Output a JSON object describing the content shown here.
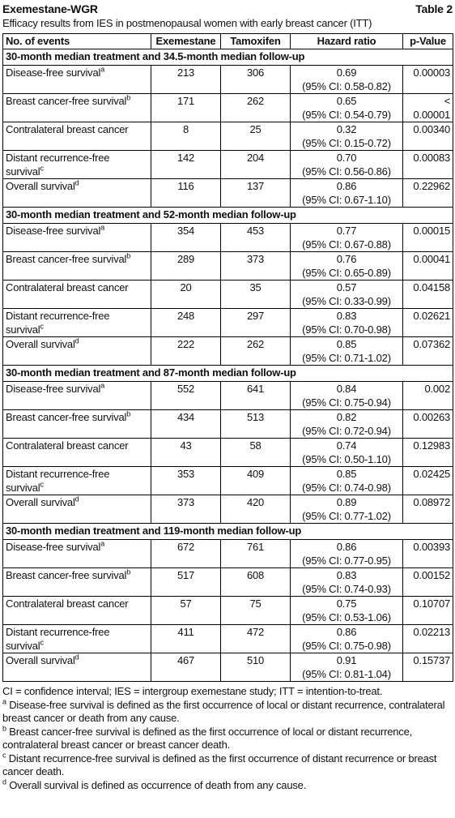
{
  "header": {
    "title": "Exemestane-WGR",
    "table_label": "Table 2",
    "subtitle": "Efficacy results from IES in postmenopausal women with early breast cancer (ITT)"
  },
  "table": {
    "columns": [
      "No. of events",
      "Exemestane",
      "Tamoxifen",
      "Hazard ratio",
      "p-Value"
    ],
    "sections": [
      {
        "heading": "30-month median treatment and 34.5-month median follow-up",
        "rows": [
          {
            "label": "Disease-free survival",
            "sup": "a",
            "exemestane": "213",
            "tamoxifen": "306",
            "hazard_ratio": "0.69",
            "ci": "(95% CI: 0.58-0.82)",
            "p_value": "0.00003"
          },
          {
            "label": "Breast cancer-free survival",
            "sup": "b",
            "exemestane": "171",
            "tamoxifen": "262",
            "hazard_ratio": "0.65",
            "ci": "(95% CI: 0.54-0.79)",
            "p_value": "< 0.00001"
          },
          {
            "label": "Contralateral breast cancer",
            "exemestane": "8",
            "tamoxifen": "25",
            "hazard_ratio": "0.32",
            "ci": "(95% CI: 0.15-0.72)",
            "p_value": "0.00340"
          },
          {
            "label": "Distant recurrence-free survival",
            "sup": "c",
            "exemestane": "142",
            "tamoxifen": "204",
            "hazard_ratio": "0.70",
            "ci": "(95% CI: 0.56-0.86)",
            "p_value": "0.00083"
          },
          {
            "label": "Overall survival",
            "sup": "d",
            "exemestane": "116",
            "tamoxifen": "137",
            "hazard_ratio": "0.86",
            "ci": "(95% CI: 0.67-1.10)",
            "p_value": "0.22962"
          }
        ]
      },
      {
        "heading": "30-month median treatment and 52-month median follow-up",
        "rows": [
          {
            "label": "Disease-free survival",
            "sup": "a",
            "exemestane": "354",
            "tamoxifen": "453",
            "hazard_ratio": "0.77",
            "ci": "(95% CI: 0.67-0.88)",
            "p_value": "0.00015"
          },
          {
            "label": "Breast cancer-free survival",
            "sup": "b",
            "exemestane": "289",
            "tamoxifen": "373",
            "hazard_ratio": "0.76",
            "ci": "(95% CI: 0.65-0.89)",
            "p_value": "0.00041"
          },
          {
            "label": "Contralateral breast cancer",
            "exemestane": "20",
            "tamoxifen": "35",
            "hazard_ratio": "0.57",
            "ci": "(95% CI: 0.33-0.99)",
            "p_value": "0.04158"
          },
          {
            "label": "Distant recurrence-free survival",
            "sup": "c",
            "exemestane": "248",
            "tamoxifen": "297",
            "hazard_ratio": "0.83",
            "ci": "(95% CI: 0.70-0.98)",
            "p_value": "0.02621"
          },
          {
            "label": "Overall survival",
            "sup": "d",
            "exemestane": "222",
            "tamoxifen": "262",
            "hazard_ratio": "0.85",
            "ci": "(95% CI: 0.71-1.02)",
            "p_value": "0.07362"
          }
        ]
      },
      {
        "heading": "30-month median treatment and 87-month median follow-up",
        "rows": [
          {
            "label": "Disease-free survival",
            "sup": "a",
            "exemestane": "552",
            "tamoxifen": "641",
            "hazard_ratio": "0.84",
            "ci": "(95% CI: 0.75-0.94)",
            "p_value": "0.002"
          },
          {
            "label": "Breast cancer-free survival",
            "sup": "b",
            "exemestane": "434",
            "tamoxifen": "513",
            "hazard_ratio": "0.82",
            "ci": "(95% CI: 0.72-0.94)",
            "p_value": "0.00263"
          },
          {
            "label": "Contralateral breast cancer",
            "exemestane": "43",
            "tamoxifen": "58",
            "hazard_ratio": "0.74",
            "ci": "(95% CI: 0.50-1.10)",
            "p_value": "0.12983"
          },
          {
            "label": "Distant recurrence-free survival",
            "sup": "c",
            "exemestane": "353",
            "tamoxifen": "409",
            "hazard_ratio": "0.85",
            "ci": "(95% CI: 0.74-0.98)",
            "p_value": "0.02425"
          },
          {
            "label": "Overall survival",
            "sup": "d",
            "exemestane": "373",
            "tamoxifen": "420",
            "hazard_ratio": "0.89",
            "ci": "(95% CI: 0.77-1.02)",
            "p_value": "0.08972"
          }
        ]
      },
      {
        "heading": "30-month median treatment and 119-month median follow-up",
        "rows": [
          {
            "label": "Disease-free survival",
            "sup": "a",
            "exemestane": "672",
            "tamoxifen": "761",
            "hazard_ratio": "0.86",
            "ci": "(95% CI: 0.77-0.95)",
            "p_value": "0.00393"
          },
          {
            "label": "Breast cancer-free survival",
            "sup": "b",
            "exemestane": "517",
            "tamoxifen": "608",
            "hazard_ratio": "0.83",
            "ci": "(95% CI: 0.74-0.93)",
            "p_value": "0.00152"
          },
          {
            "label": "Contralateral breast cancer",
            "exemestane": "57",
            "tamoxifen": "75",
            "hazard_ratio": "0.75",
            "ci": "(95% CI: 0.53-1.06)",
            "p_value": "0.10707"
          },
          {
            "label": "Distant recurrence-free survival",
            "sup": "c",
            "exemestane": "411",
            "tamoxifen": "472",
            "hazard_ratio": "0.86",
            "ci": "(95% CI: 0.75-0.98)",
            "p_value": "0.02213"
          },
          {
            "label": "Overall survival",
            "sup": "d",
            "exemestane": "467",
            "tamoxifen": "510",
            "hazard_ratio": "0.91",
            "ci": "(95% CI: 0.81-1.04)",
            "p_value": "0.15737"
          }
        ]
      }
    ]
  },
  "footnotes": {
    "abbreviations": "CI = confidence interval; IES = intergroup exemestane study; ITT = intention-to-treat.",
    "notes": [
      {
        "marker": "a",
        "text": "Disease-free survival is defined as the first occurrence of local or distant recurrence, contralateral breast cancer or death from any cause."
      },
      {
        "marker": "b",
        "text": "Breast cancer-free survival is defined as the first occurrence of local or distant recurrence, contralateral breast cancer or breast cancer death."
      },
      {
        "marker": "c",
        "text": "Distant recurrence-free survival is defined as the first occurrence of distant recurrence or breast cancer death."
      },
      {
        "marker": "d",
        "text": "Overall survival is defined as occurrence of death from any cause."
      }
    ]
  }
}
